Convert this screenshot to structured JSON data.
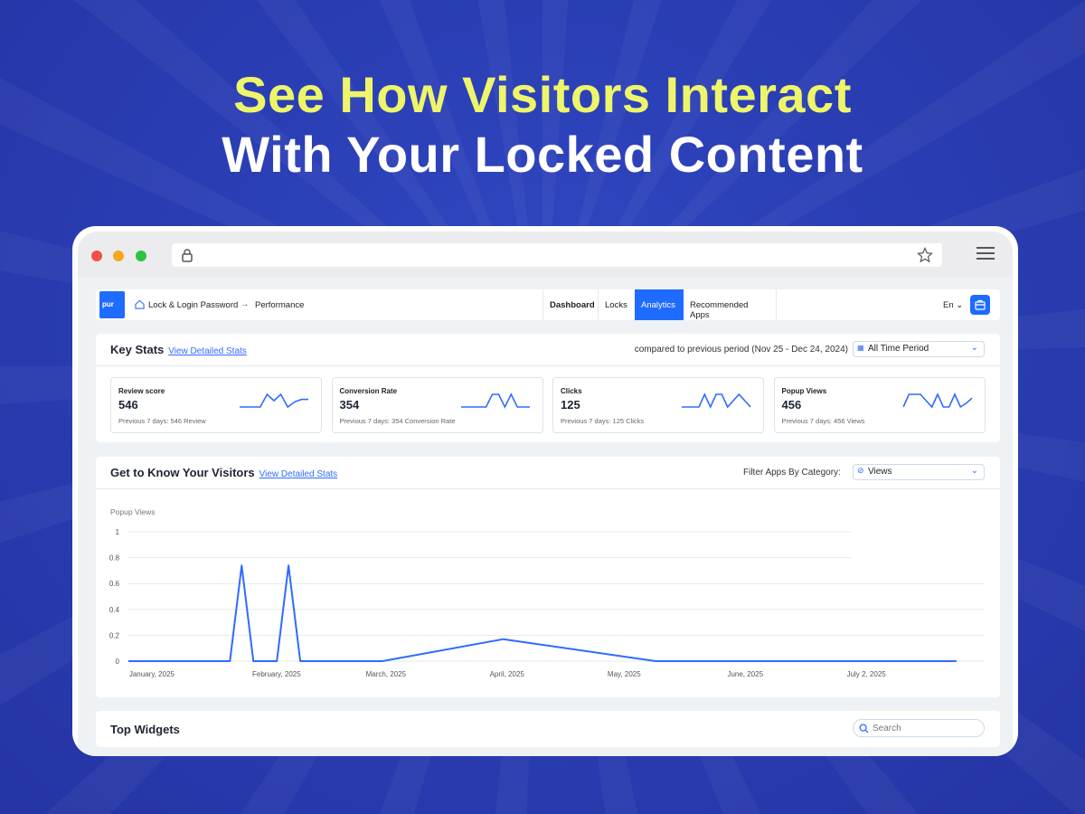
{
  "headline": {
    "line1": "See How Visitors Interact",
    "line2": "With Your Locked Content",
    "line1_color": "#eef56a"
  },
  "browser": {
    "icons": [
      "lock-icon",
      "star-icon",
      "hamburger-menu-icon"
    ]
  },
  "nav": {
    "logo": "pur",
    "breadcrumb": [
      "Lock & Login Password",
      "Performance"
    ],
    "tabs": [
      {
        "label": "Dashboard"
      },
      {
        "label": "Locks"
      },
      {
        "label": "Analytics",
        "active": true
      },
      {
        "label": "Recommended Apps"
      }
    ],
    "language": "En"
  },
  "key_stats": {
    "title": "Key Stats",
    "link": "View Detailed Stats",
    "compared": "compared to previous period (Nov 25 - Dec 24, 2024)",
    "period": "All Time Period",
    "cards": [
      {
        "label": "Review score",
        "value": "546",
        "previous": "Previous 7 days: 546 Review",
        "spark": [
          0,
          0,
          0,
          0,
          1,
          0.5,
          1,
          0,
          0.4,
          0.6,
          0.6
        ]
      },
      {
        "label": "Conversion Rate",
        "value": "354",
        "previous": "Previous 7 days: 354 Conversion Rate",
        "spark": [
          0,
          0,
          0,
          0,
          0,
          1,
          1,
          0,
          1,
          0,
          0,
          0
        ]
      },
      {
        "label": "Clicks",
        "value": "125",
        "previous": "Previous 7 days: 125 Clicks",
        "spark": [
          0,
          0,
          0,
          0,
          1,
          0,
          1,
          1,
          0,
          0.5,
          1,
          0.5,
          0
        ]
      },
      {
        "label": "Popup Views",
        "value": "456",
        "previous": "Previous 7 days: 456 Views",
        "spark": [
          0,
          1,
          1,
          1,
          0.5,
          0,
          1,
          0,
          0,
          1,
          0,
          0.3,
          0.7
        ]
      }
    ]
  },
  "visitors": {
    "title": "Get to Know Your Visitors",
    "link": "View Detailed Stats",
    "filter_label": "Filter Apps By Category:",
    "filter_value": "Views"
  },
  "chart_data": {
    "type": "line",
    "ylabel": "Popup Views",
    "ylim": [
      0,
      1
    ],
    "yticks": [
      "1",
      "0.8",
      "0.6",
      "0.4",
      "0.2",
      "0"
    ],
    "xtick_labels": [
      "January, 2025",
      "February, 2025",
      "March, 2025",
      "April, 2025",
      "May, 2025",
      "June, 2025",
      "July 2, 2025"
    ],
    "x": [
      "2024-12-26",
      "2025-01-21",
      "2025-01-24",
      "2025-01-27",
      "2025-02-02",
      "2025-02-05",
      "2025-02-08",
      "2025-03-01",
      "2025-04-01",
      "2025-05-10",
      "2025-07-26"
    ],
    "y": [
      0,
      0,
      0.74,
      0,
      0,
      0.74,
      0,
      0,
      0.17,
      0,
      0
    ],
    "color": "#2f6bff",
    "grid": true
  },
  "widgets": {
    "title": "Top Widgets",
    "search_placeholder": "Search"
  }
}
